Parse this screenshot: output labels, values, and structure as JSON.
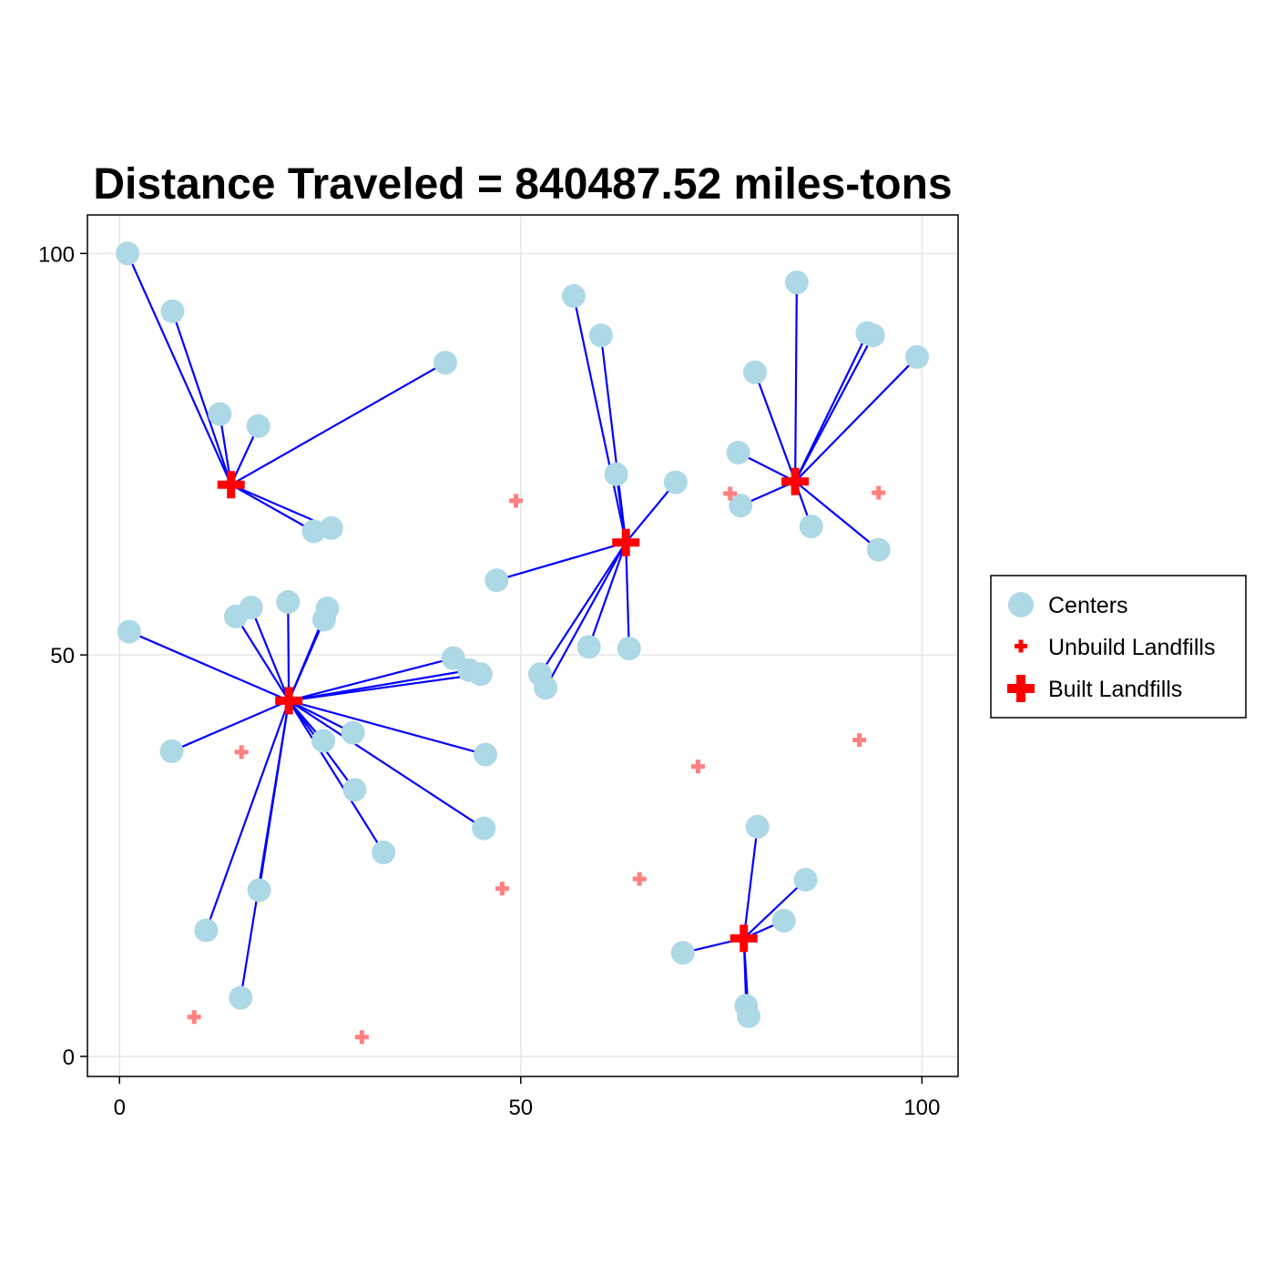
{
  "chart_data": {
    "type": "scatter",
    "title": "Distance Traveled = 840487.52 miles-tons",
    "xlim": [
      -4,
      104.5
    ],
    "ylim": [
      -2.5,
      104.8
    ],
    "x_ticks": [
      0,
      50,
      100
    ],
    "y_ticks": [
      0,
      50,
      100
    ],
    "grid": true,
    "legend_position": "right",
    "colors": {
      "centers": "#add8e6",
      "links": "#0000ff",
      "unbuilt": "#ff8080",
      "built": "#ff0000"
    },
    "series": [
      {
        "name": "Centers",
        "marker": "circle",
        "points": [
          [
            1,
            100
          ],
          [
            6.6,
            92.8
          ],
          [
            12.5,
            80
          ],
          [
            17.3,
            78.5
          ],
          [
            40.6,
            86.4
          ],
          [
            24.2,
            65.4
          ],
          [
            26.4,
            65.8
          ],
          [
            56.6,
            94.7
          ],
          [
            60,
            89.8
          ],
          [
            61.9,
            72.5
          ],
          [
            69.3,
            71.5
          ],
          [
            47,
            59.3
          ],
          [
            58.5,
            51
          ],
          [
            63.5,
            50.8
          ],
          [
            52.4,
            47.6
          ],
          [
            53.1,
            45.9
          ],
          [
            84.4,
            96.4
          ],
          [
            93.2,
            90.1
          ],
          [
            93.9,
            89.8
          ],
          [
            99.4,
            87.1
          ],
          [
            79.2,
            85.2
          ],
          [
            77.1,
            75.2
          ],
          [
            77.4,
            68.6
          ],
          [
            86.2,
            66
          ],
          [
            94.6,
            63.1
          ],
          [
            1.2,
            52.9
          ],
          [
            14.5,
            54.8
          ],
          [
            16.4,
            55.9
          ],
          [
            21,
            56.6
          ],
          [
            25.9,
            55.8
          ],
          [
            25.5,
            54.4
          ],
          [
            41.6,
            49.6
          ],
          [
            43.6,
            48.1
          ],
          [
            45,
            47.6
          ],
          [
            6.5,
            38
          ],
          [
            25.4,
            39.3
          ],
          [
            29.1,
            40.3
          ],
          [
            45.6,
            37.6
          ],
          [
            29.3,
            33.2
          ],
          [
            45.4,
            28.4
          ],
          [
            32.9,
            25.4
          ],
          [
            17.4,
            20.7
          ],
          [
            10.8,
            15.7
          ],
          [
            15.1,
            7.3
          ],
          [
            79.5,
            28.6
          ],
          [
            85.5,
            22
          ],
          [
            82.8,
            16.9
          ],
          [
            70.2,
            12.9
          ],
          [
            78.1,
            6.3
          ],
          [
            78.4,
            5
          ]
        ]
      },
      {
        "name": "Unbuild Landfills",
        "marker": "plus-small",
        "points": [
          [
            49.4,
            69.2
          ],
          [
            76.1,
            70.1
          ],
          [
            94.6,
            70.2
          ],
          [
            15.2,
            37.9
          ],
          [
            72.1,
            36.1
          ],
          [
            92.2,
            39.4
          ],
          [
            47.7,
            20.9
          ],
          [
            64.8,
            22.1
          ],
          [
            9.3,
            4.9
          ],
          [
            30.2,
            2.4
          ]
        ]
      },
      {
        "name": "Built Landfills",
        "marker": "plus-large",
        "points": [
          [
            13.9,
            71.2
          ],
          [
            63.1,
            64
          ],
          [
            84.2,
            71.6
          ],
          [
            21.1,
            44.3
          ],
          [
            77.8,
            14.7
          ]
        ]
      }
    ],
    "assignments": [
      [
        0,
        0
      ],
      [
        1,
        0
      ],
      [
        2,
        0
      ],
      [
        3,
        0
      ],
      [
        4,
        0
      ],
      [
        5,
        0
      ],
      [
        6,
        0
      ],
      [
        7,
        1
      ],
      [
        8,
        1
      ],
      [
        9,
        1
      ],
      [
        10,
        1
      ],
      [
        11,
        1
      ],
      [
        12,
        1
      ],
      [
        13,
        1
      ],
      [
        14,
        1
      ],
      [
        15,
        1
      ],
      [
        16,
        2
      ],
      [
        17,
        2
      ],
      [
        18,
        2
      ],
      [
        19,
        2
      ],
      [
        20,
        2
      ],
      [
        21,
        2
      ],
      [
        22,
        2
      ],
      [
        23,
        2
      ],
      [
        24,
        2
      ],
      [
        25,
        3
      ],
      [
        26,
        3
      ],
      [
        27,
        3
      ],
      [
        28,
        3
      ],
      [
        29,
        3
      ],
      [
        30,
        3
      ],
      [
        31,
        3
      ],
      [
        32,
        3
      ],
      [
        33,
        3
      ],
      [
        34,
        3
      ],
      [
        35,
        3
      ],
      [
        36,
        3
      ],
      [
        37,
        3
      ],
      [
        38,
        3
      ],
      [
        39,
        3
      ],
      [
        40,
        3
      ],
      [
        41,
        3
      ],
      [
        42,
        3
      ],
      [
        43,
        3
      ],
      [
        44,
        4
      ],
      [
        45,
        4
      ],
      [
        46,
        4
      ],
      [
        47,
        4
      ],
      [
        48,
        4
      ],
      [
        49,
        4
      ]
    ]
  }
}
